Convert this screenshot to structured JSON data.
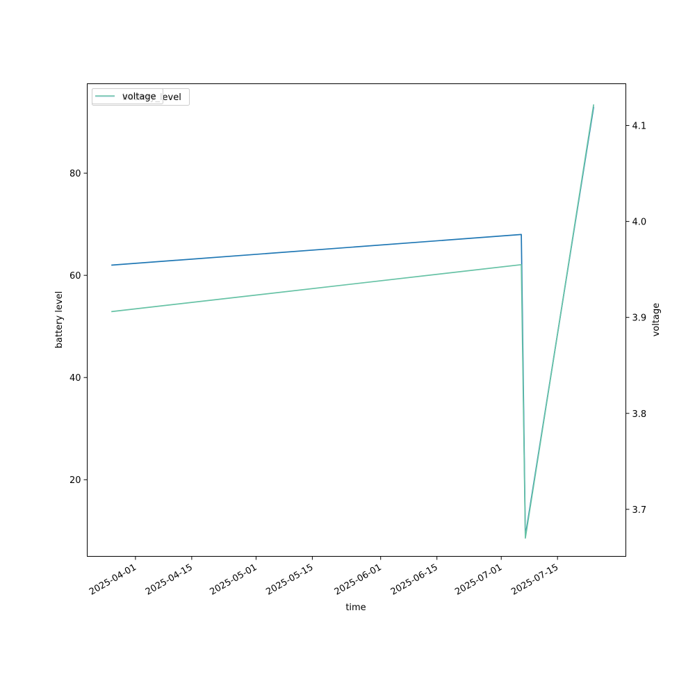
{
  "chart_data": {
    "type": "line",
    "xlabel": "time",
    "ylabel_left": "battery level",
    "ylabel_right": "voltage",
    "x_ticks": [
      "2025-04-01",
      "2025-04-15",
      "2025-05-01",
      "2025-05-15",
      "2025-06-01",
      "2025-06-15",
      "2025-07-01",
      "2025-07-15"
    ],
    "xlim": [
      "2025-03-20",
      "2025-08-01"
    ],
    "y_left_ticks": [
      20,
      40,
      60,
      80
    ],
    "y_left_lim": [
      5,
      97.5
    ],
    "y_right_ticks": [
      3.7,
      3.8,
      3.9,
      4.0,
      4.1
    ],
    "y_right_lim": [
      3.651,
      4.1435
    ],
    "legend": {
      "placement": "upper-left",
      "entries_left": [
        {
          "label": "battery_level",
          "color": "#1f77b4"
        }
      ],
      "entries_right": [
        {
          "label": "voltage",
          "color": "#66c2a5"
        }
      ]
    },
    "series": [
      {
        "name": "battery_level",
        "axis": "left",
        "color": "#1f77b4",
        "points": [
          {
            "x": "2025-03-26",
            "y": 62
          },
          {
            "x": "2025-07-06",
            "y": 68
          },
          {
            "x": "2025-07-07",
            "y": 9
          },
          {
            "x": "2025-07-24",
            "y": 93
          }
        ]
      },
      {
        "name": "voltage",
        "axis": "right",
        "color": "#66c2a5",
        "points": [
          {
            "x": "2025-03-26",
            "y": 3.906
          },
          {
            "x": "2025-07-06",
            "y": 3.955
          },
          {
            "x": "2025-07-07",
            "y": 3.67
          },
          {
            "x": "2025-07-24",
            "y": 4.122
          }
        ]
      }
    ]
  }
}
